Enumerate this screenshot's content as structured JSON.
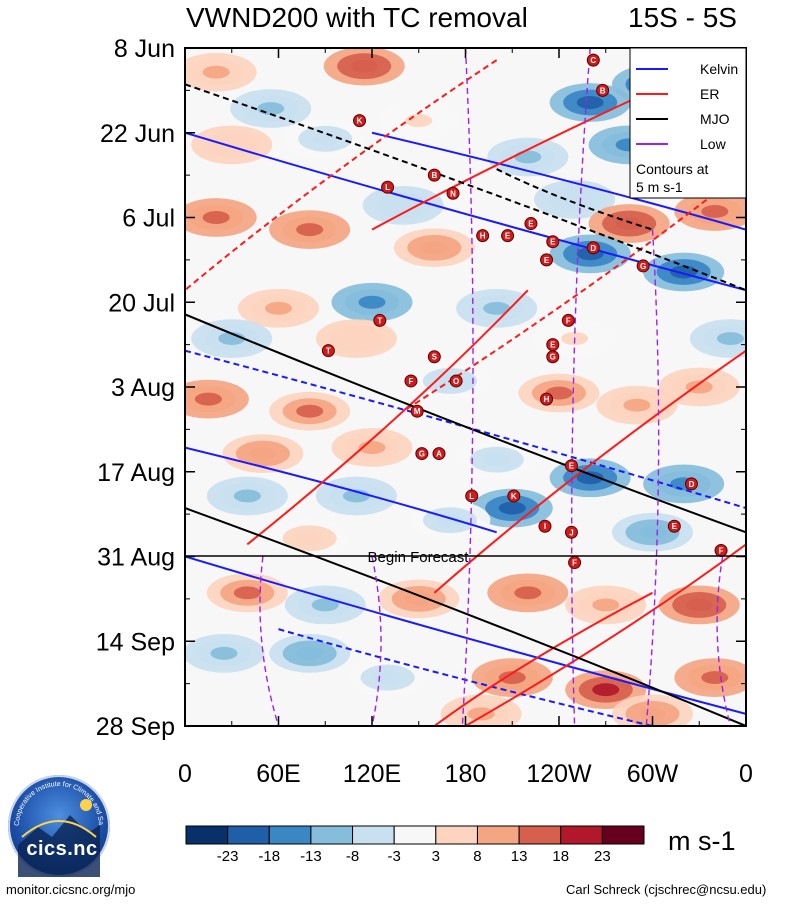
{
  "header": {
    "title": "VWND200 with TC removal",
    "lat_band": "15S - 5S"
  },
  "legend": {
    "items": [
      {
        "name": "Kelvin",
        "color": "#1a1aff"
      },
      {
        "name": "ER",
        "color": "#ff1a1a"
      },
      {
        "name": "MJO",
        "color": "#000000"
      },
      {
        "name": "Low",
        "color": "#a020f0"
      }
    ],
    "note_line1": "Contours at",
    "note_line2": "5 m s-1"
  },
  "colorbar": {
    "tick_labels": [
      "-23",
      "-18",
      "-13",
      "-8",
      "-3",
      "3",
      "8",
      "13",
      "18",
      "23"
    ],
    "colors": [
      "#08306b",
      "#1f5fa8",
      "#3a87c4",
      "#86bddb",
      "#c8e0ef",
      "#f7f7f7",
      "#fcd4bf",
      "#f4a582",
      "#d6604d",
      "#b2182b",
      "#67001f"
    ],
    "units": "m s-1"
  },
  "forecast_label": "Begin Forecast",
  "footer": {
    "left": "monitor.cicsnc.org/mjo",
    "right": "Carl Schreck (cjschrec@ncsu.edu)"
  },
  "logo": {
    "name": "cics.nc",
    "ring_text": "Cooperative Institute for Climate and Satellites"
  },
  "chart_data": {
    "type": "heatmap",
    "title": "VWND200 with TC removal",
    "subtitle": "15S - 5S",
    "x_ticks": [
      "0",
      "60E",
      "120E",
      "180",
      "120W",
      "60W",
      "0"
    ],
    "x_values": [
      0,
      60,
      120,
      180,
      240,
      300,
      360
    ],
    "xlim": [
      0,
      360
    ],
    "y_ticks": [
      "8 Jun",
      "22 Jun",
      "6 Jul",
      "20 Jul",
      "3 Aug",
      "17 Aug",
      "31 Aug",
      "14 Sep",
      "28 Sep"
    ],
    "y_days": [
      0,
      14,
      28,
      42,
      56,
      70,
      84,
      98,
      112
    ],
    "ylim": [
      0,
      112
    ],
    "forecast_start_day": 84,
    "levels": [
      -23,
      -18,
      -13,
      -8,
      -3,
      3,
      8,
      13,
      18,
      23
    ],
    "units": "m s-1",
    "blobs": [
      {
        "lon": 20,
        "day": 4,
        "v": 10
      },
      {
        "lon": 115,
        "day": 3,
        "v": 22
      },
      {
        "lon": 55,
        "day": 10,
        "v": -12
      },
      {
        "lon": 30,
        "day": 16,
        "v": 8
      },
      {
        "lon": 90,
        "day": 15,
        "v": -6
      },
      {
        "lon": 150,
        "day": 12,
        "v": 4
      },
      {
        "lon": 260,
        "day": 9,
        "v": -26
      },
      {
        "lon": 300,
        "day": 6,
        "v": -22
      },
      {
        "lon": 285,
        "day": 16,
        "v": -18
      },
      {
        "lon": 220,
        "day": 18,
        "v": -10
      },
      {
        "lon": 340,
        "day": 16,
        "v": 6
      },
      {
        "lon": 20,
        "day": 28,
        "v": 20
      },
      {
        "lon": 80,
        "day": 30,
        "v": 18
      },
      {
        "lon": 140,
        "day": 26,
        "v": -8
      },
      {
        "lon": 160,
        "day": 33,
        "v": 14
      },
      {
        "lon": 250,
        "day": 25,
        "v": -8
      },
      {
        "lon": 285,
        "day": 29,
        "v": 22
      },
      {
        "lon": 340,
        "day": 27,
        "v": 18
      },
      {
        "lon": 260,
        "day": 34,
        "v": -24
      },
      {
        "lon": 320,
        "day": 37,
        "v": -26
      },
      {
        "lon": 120,
        "day": 42,
        "v": -20
      },
      {
        "lon": 60,
        "day": 43,
        "v": 10
      },
      {
        "lon": 200,
        "day": 43,
        "v": -12
      },
      {
        "lon": 30,
        "day": 48,
        "v": -10
      },
      {
        "lon": 110,
        "day": 48,
        "v": 8
      },
      {
        "lon": 250,
        "day": 48,
        "v": 4
      },
      {
        "lon": 350,
        "day": 48,
        "v": -12
      },
      {
        "lon": 15,
        "day": 58,
        "v": 18
      },
      {
        "lon": 80,
        "day": 60,
        "v": 16
      },
      {
        "lon": 170,
        "day": 55,
        "v": -6
      },
      {
        "lon": 240,
        "day": 57,
        "v": 16
      },
      {
        "lon": 290,
        "day": 59,
        "v": 10
      },
      {
        "lon": 330,
        "day": 56,
        "v": 12
      },
      {
        "lon": 50,
        "day": 67,
        "v": 14
      },
      {
        "lon": 120,
        "day": 66,
        "v": 12
      },
      {
        "lon": 200,
        "day": 68,
        "v": -6
      },
      {
        "lon": 260,
        "day": 71,
        "v": -24
      },
      {
        "lon": 320,
        "day": 72,
        "v": -20
      },
      {
        "lon": 40,
        "day": 74,
        "v": -12
      },
      {
        "lon": 110,
        "day": 74,
        "v": -10
      },
      {
        "lon": 210,
        "day": 76,
        "v": -26
      },
      {
        "lon": 300,
        "day": 80,
        "v": -14
      },
      {
        "lon": 170,
        "day": 78,
        "v": -6
      },
      {
        "lon": 80,
        "day": 81,
        "v": 6
      },
      {
        "lon": 40,
        "day": 90,
        "v": 16
      },
      {
        "lon": 90,
        "day": 92,
        "v": -10
      },
      {
        "lon": 150,
        "day": 91,
        "v": 14
      },
      {
        "lon": 220,
        "day": 90,
        "v": 18
      },
      {
        "lon": 270,
        "day": 92,
        "v": 10
      },
      {
        "lon": 330,
        "day": 92,
        "v": 22
      },
      {
        "lon": 25,
        "day": 100,
        "v": -12
      },
      {
        "lon": 80,
        "day": 100,
        "v": -14
      },
      {
        "lon": 130,
        "day": 104,
        "v": -6
      },
      {
        "lon": 210,
        "day": 104,
        "v": 20
      },
      {
        "lon": 270,
        "day": 106,
        "v": 24
      },
      {
        "lon": 340,
        "day": 104,
        "v": 18
      },
      {
        "lon": 190,
        "day": 110,
        "v": 12
      },
      {
        "lon": 300,
        "day": 110,
        "v": 14
      }
    ],
    "waves": [
      {
        "type": "Kelvin",
        "lon0": 0,
        "day0": 14,
        "lon1": 360,
        "day1": 40
      },
      {
        "type": "Kelvin",
        "lon0": 0,
        "day0": 50,
        "lon1": 360,
        "day1": 76
      },
      {
        "type": "Kelvin",
        "lon0": 0,
        "day0": 84,
        "lon1": 360,
        "day1": 110
      },
      {
        "type": "Kelvin",
        "lon0": 120,
        "day0": 14,
        "lon1": 360,
        "day1": 30
      },
      {
        "type": "Kelvin",
        "lon0": 60,
        "day0": 96,
        "lon1": 300,
        "day1": 112
      },
      {
        "type": "Kelvin",
        "lon0": 0,
        "day0": 66,
        "lon1": 200,
        "day1": 80
      },
      {
        "type": "ER",
        "lon0": 360,
        "day0": 0,
        "lon1": 120,
        "day1": 30
      },
      {
        "type": "ER",
        "lon0": 360,
        "day0": 20,
        "lon1": 140,
        "day1": 60
      },
      {
        "type": "ER",
        "lon0": 360,
        "day0": 50,
        "lon1": 160,
        "day1": 90
      },
      {
        "type": "ER",
        "lon0": 360,
        "day0": 82,
        "lon1": 180,
        "day1": 112
      },
      {
        "type": "ER",
        "lon0": 200,
        "day0": 2,
        "lon1": 0,
        "day1": 40
      },
      {
        "type": "ER",
        "lon0": 220,
        "day0": 40,
        "lon1": 40,
        "day1": 82
      },
      {
        "type": "ER",
        "lon0": 300,
        "day0": 90,
        "lon1": 160,
        "day1": 112
      },
      {
        "type": "MJO",
        "lon0": 0,
        "day0": 6,
        "lon1": 360,
        "day1": 40
      },
      {
        "type": "MJO",
        "lon0": 0,
        "day0": 44,
        "lon1": 360,
        "day1": 80
      },
      {
        "type": "MJO",
        "lon0": 0,
        "day0": 76,
        "lon1": 360,
        "day1": 112
      },
      {
        "type": "MJO",
        "lon0": 200,
        "day0": 20,
        "lon1": 300,
        "day1": 30
      },
      {
        "type": "Low",
        "lon0": 180,
        "day0": 0,
        "lon1": 178,
        "day1": 112
      },
      {
        "type": "Low",
        "lon0": 260,
        "day0": 0,
        "lon1": 250,
        "day1": 112
      },
      {
        "type": "Low",
        "lon0": 300,
        "day0": 30,
        "lon1": 296,
        "day1": 112
      },
      {
        "type": "Low",
        "lon0": 50,
        "day0": 84,
        "lon1": 60,
        "day1": 112
      },
      {
        "type": "Low",
        "lon0": 120,
        "day0": 84,
        "lon1": 120,
        "day1": 112
      },
      {
        "type": "Low",
        "lon0": 345,
        "day0": 84,
        "lon1": 350,
        "day1": 112
      }
    ],
    "tc_markers": [
      {
        "label": "C",
        "lon": 262,
        "day": 2
      },
      {
        "label": "B",
        "lon": 268,
        "day": 7
      },
      {
        "label": "K",
        "lon": 112,
        "day": 12
      },
      {
        "label": "B",
        "lon": 160,
        "day": 21
      },
      {
        "label": "N",
        "lon": 172,
        "day": 24
      },
      {
        "label": "L",
        "lon": 130,
        "day": 23
      },
      {
        "label": "E",
        "lon": 222,
        "day": 29
      },
      {
        "label": "E",
        "lon": 207,
        "day": 31
      },
      {
        "label": "H",
        "lon": 191,
        "day": 31
      },
      {
        "label": "E",
        "lon": 236,
        "day": 32
      },
      {
        "label": "D",
        "lon": 262,
        "day": 33
      },
      {
        "label": "E",
        "lon": 232,
        "day": 35
      },
      {
        "label": "G",
        "lon": 294,
        "day": 36
      },
      {
        "label": "T",
        "lon": 125,
        "day": 45
      },
      {
        "label": "F",
        "lon": 246,
        "day": 45
      },
      {
        "label": "T",
        "lon": 92,
        "day": 50
      },
      {
        "label": "E",
        "lon": 236,
        "day": 49
      },
      {
        "label": "G",
        "lon": 236,
        "day": 51
      },
      {
        "label": "S",
        "lon": 160,
        "day": 51
      },
      {
        "label": "F",
        "lon": 145,
        "day": 55
      },
      {
        "label": "O",
        "lon": 174,
        "day": 55
      },
      {
        "label": "M",
        "lon": 149,
        "day": 60
      },
      {
        "label": "H",
        "lon": 232,
        "day": 58
      },
      {
        "label": "G",
        "lon": 152,
        "day": 67
      },
      {
        "label": "A",
        "lon": 163,
        "day": 67
      },
      {
        "label": "E",
        "lon": 248,
        "day": 69
      },
      {
        "label": "D",
        "lon": 325,
        "day": 72
      },
      {
        "label": "L",
        "lon": 184,
        "day": 74
      },
      {
        "label": "K",
        "lon": 211,
        "day": 74
      },
      {
        "label": "I",
        "lon": 231,
        "day": 79
      },
      {
        "label": "J",
        "lon": 248,
        "day": 80
      },
      {
        "label": "E",
        "lon": 314,
        "day": 79
      },
      {
        "label": "F",
        "lon": 344,
        "day": 83
      },
      {
        "label": "F",
        "lon": 250,
        "day": 85
      }
    ]
  }
}
